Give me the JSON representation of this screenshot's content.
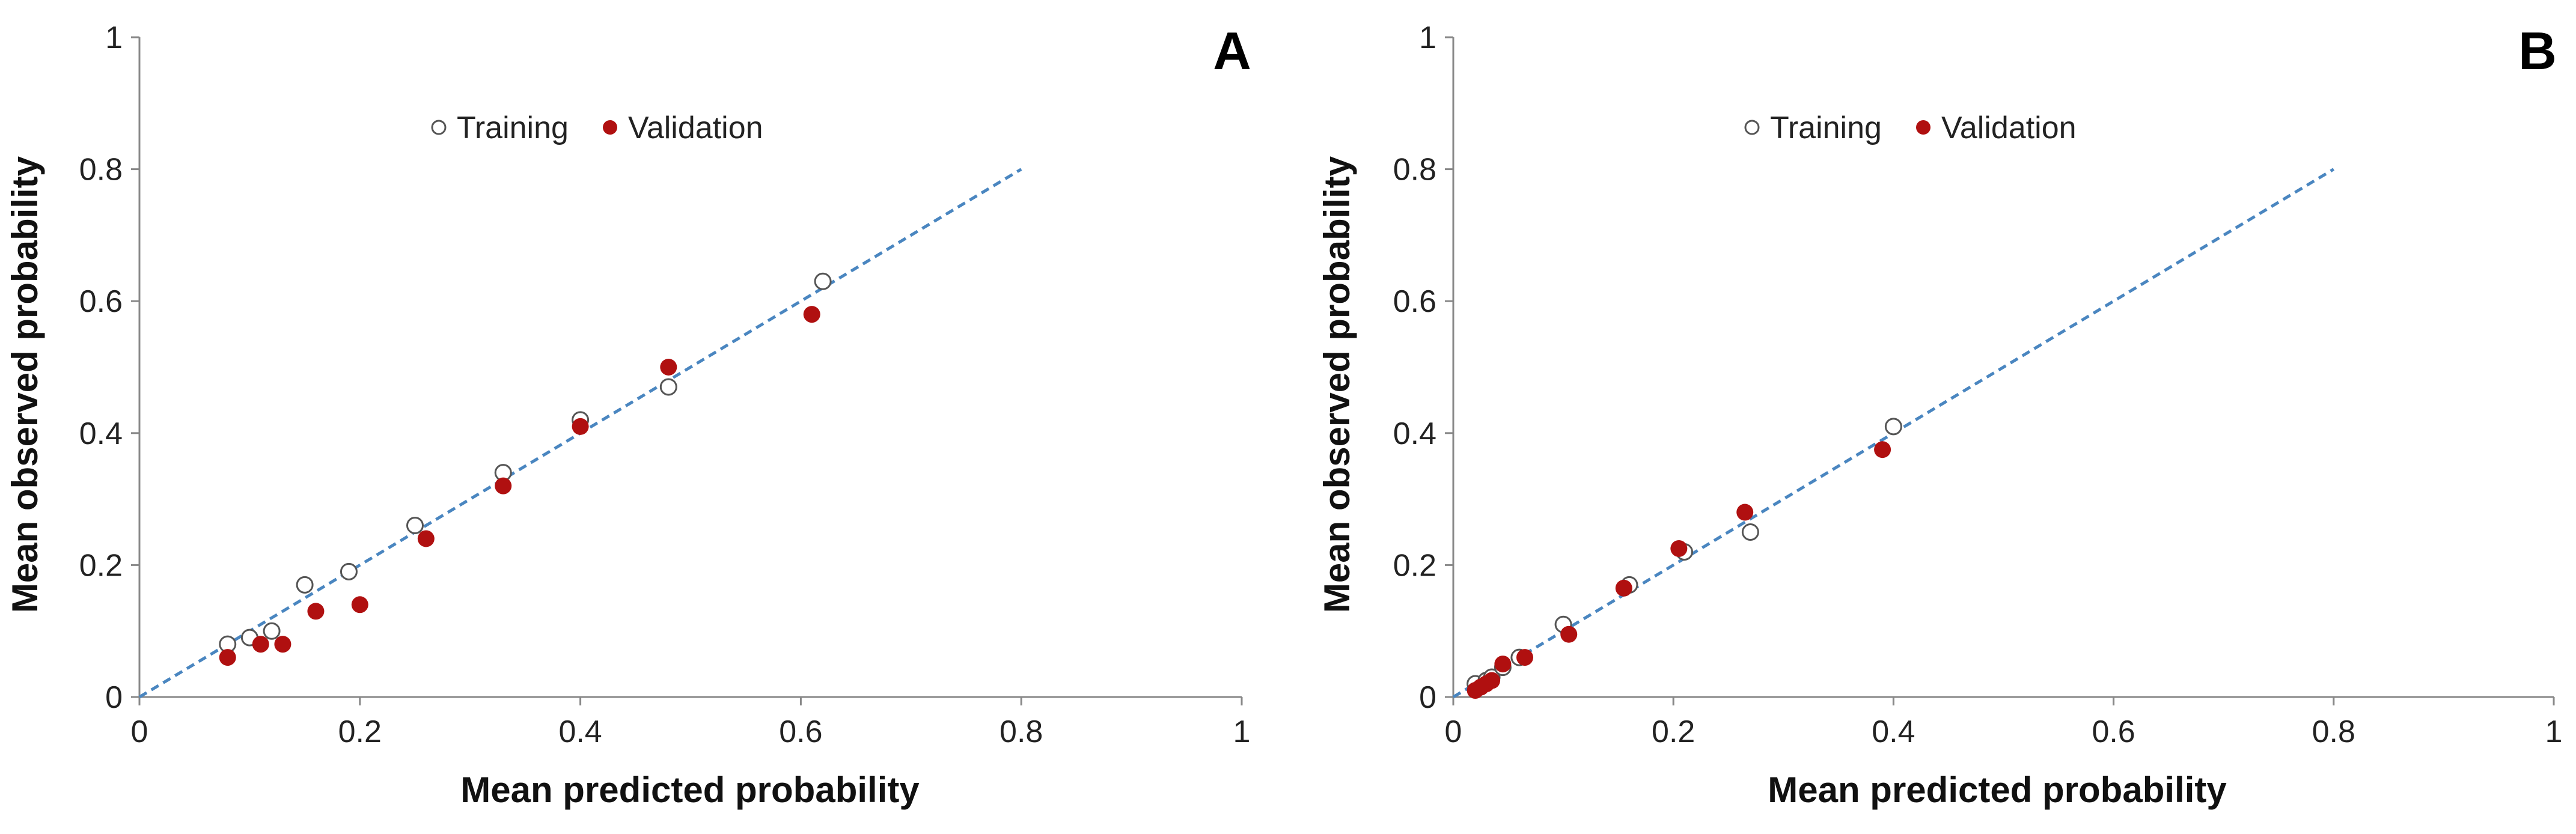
{
  "chart_data": [
    {
      "panel": "A",
      "type": "scatter",
      "xlabel": "Mean predicted probability",
      "ylabel": "Mean observed probability",
      "xlim": [
        0,
        1
      ],
      "ylim": [
        0,
        1
      ],
      "x_ticks": [
        "0",
        "0.2",
        "0.4",
        "0.6",
        "0.8",
        "1"
      ],
      "y_ticks": [
        "0",
        "0.2",
        "0.4",
        "0.6",
        "0.8",
        "1"
      ],
      "reference_line": {
        "x": [
          0,
          0.8
        ],
        "y": [
          0,
          0.8
        ],
        "style": "dashed",
        "color": "#4a86c0"
      },
      "legend": [
        "Training",
        "Validation"
      ],
      "series": [
        {
          "name": "Training",
          "marker": "open-circle",
          "color": "#555555",
          "points": [
            [
              0.08,
              0.08
            ],
            [
              0.1,
              0.09
            ],
            [
              0.12,
              0.1
            ],
            [
              0.15,
              0.17
            ],
            [
              0.19,
              0.19
            ],
            [
              0.25,
              0.26
            ],
            [
              0.33,
              0.34
            ],
            [
              0.4,
              0.42
            ],
            [
              0.48,
              0.47
            ],
            [
              0.62,
              0.63
            ]
          ]
        },
        {
          "name": "Validation",
          "marker": "filled-circle",
          "color": "#b01010",
          "points": [
            [
              0.08,
              0.06
            ],
            [
              0.11,
              0.08
            ],
            [
              0.13,
              0.08
            ],
            [
              0.16,
              0.13
            ],
            [
              0.2,
              0.14
            ],
            [
              0.26,
              0.24
            ],
            [
              0.33,
              0.32
            ],
            [
              0.4,
              0.41
            ],
            [
              0.48,
              0.5
            ],
            [
              0.61,
              0.58
            ]
          ]
        }
      ]
    },
    {
      "panel": "B",
      "type": "scatter",
      "xlabel": "Mean predicted probability",
      "ylabel": "Mean observed probability",
      "xlim": [
        0,
        1
      ],
      "ylim": [
        0,
        1
      ],
      "x_ticks": [
        "0",
        "0.2",
        "0.4",
        "0.6",
        "0.8",
        "1"
      ],
      "y_ticks": [
        "0",
        "0.2",
        "0.4",
        "0.6",
        "0.8",
        "1"
      ],
      "reference_line": {
        "x": [
          0,
          0.8
        ],
        "y": [
          0,
          0.8
        ],
        "style": "dashed",
        "color": "#4a86c0"
      },
      "legend": [
        "Training",
        "Validation"
      ],
      "series": [
        {
          "name": "Training",
          "marker": "open-circle",
          "color": "#555555",
          "points": [
            [
              0.02,
              0.02
            ],
            [
              0.03,
              0.025
            ],
            [
              0.035,
              0.03
            ],
            [
              0.045,
              0.045
            ],
            [
              0.06,
              0.06
            ],
            [
              0.1,
              0.11
            ],
            [
              0.16,
              0.17
            ],
            [
              0.21,
              0.22
            ],
            [
              0.27,
              0.25
            ],
            [
              0.4,
              0.41
            ]
          ]
        },
        {
          "name": "Validation",
          "marker": "filled-circle",
          "color": "#b01010",
          "points": [
            [
              0.02,
              0.01
            ],
            [
              0.025,
              0.015
            ],
            [
              0.03,
              0.02
            ],
            [
              0.035,
              0.025
            ],
            [
              0.045,
              0.05
            ],
            [
              0.065,
              0.06
            ],
            [
              0.105,
              0.095
            ],
            [
              0.155,
              0.165
            ],
            [
              0.205,
              0.225
            ],
            [
              0.265,
              0.28
            ],
            [
              0.39,
              0.375
            ]
          ]
        }
      ]
    }
  ]
}
